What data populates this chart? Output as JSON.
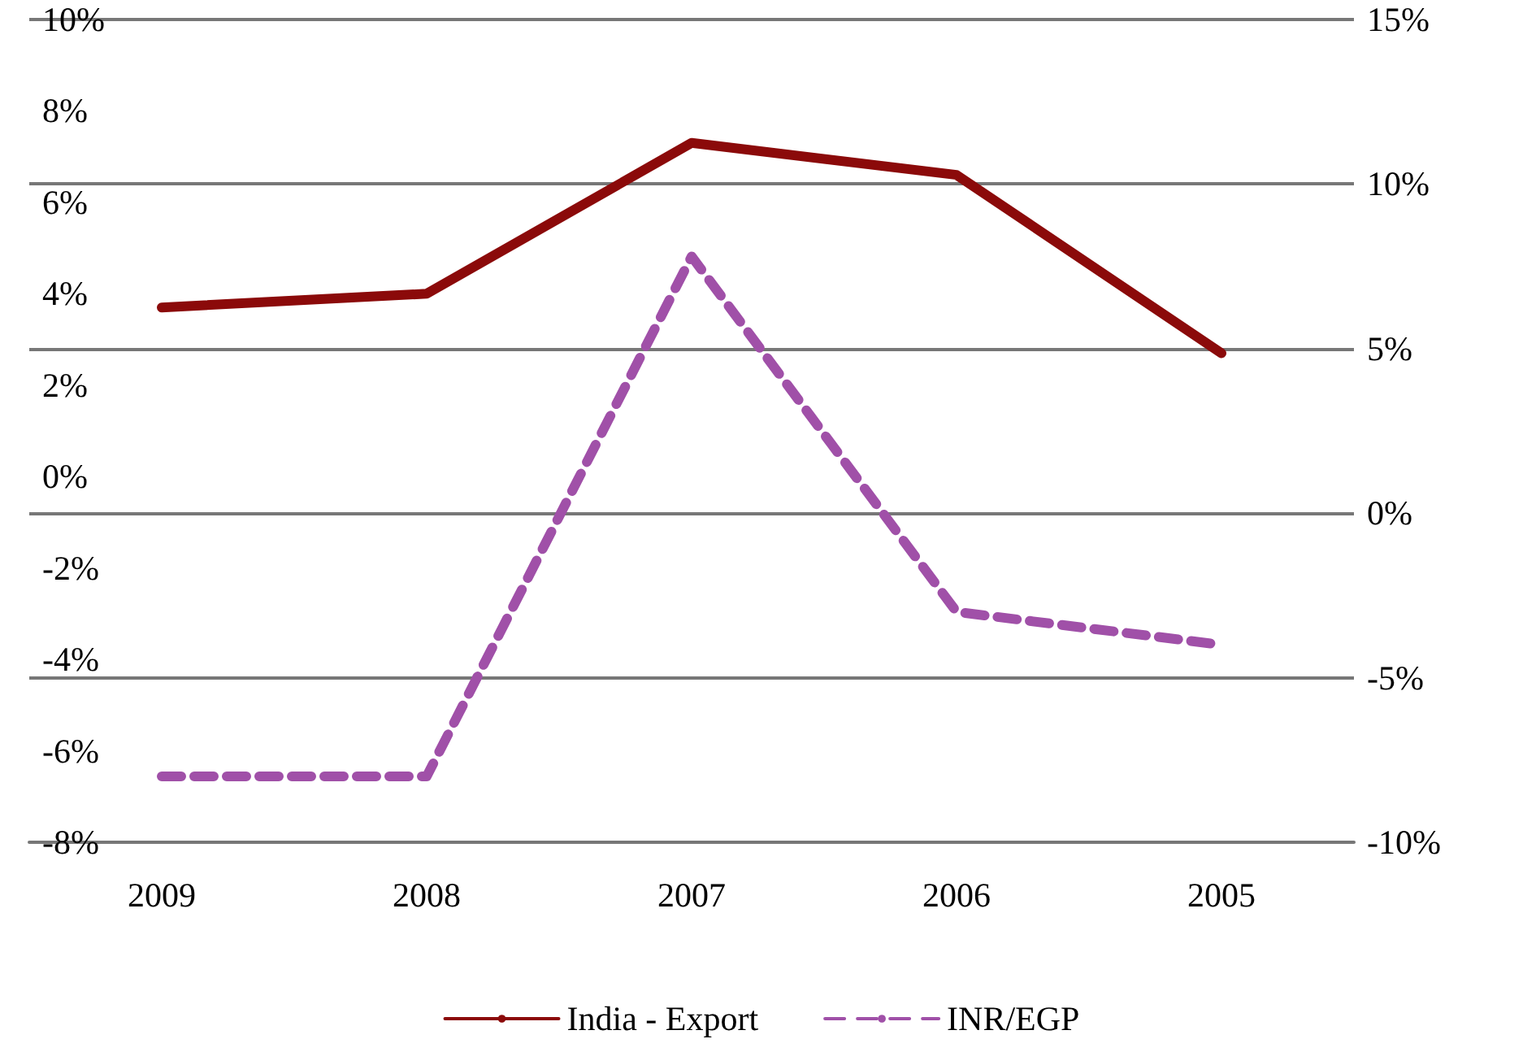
{
  "chart_data": {
    "type": "line",
    "categories": [
      "2009",
      "2008",
      "2007",
      "2006",
      "2005"
    ],
    "series": [
      {
        "name": "India - Export",
        "color": "#8b0a0a",
        "values": [
          3.7,
          4.0,
          7.3,
          6.6,
          2.7
        ],
        "line_style": "solid"
      },
      {
        "name": "INR/EGP",
        "color": "#a050a8",
        "values": [
          -8,
          -8,
          7.8,
          -3.0,
          -4.0
        ],
        "line_style": "dashed",
        "axis": "y2"
      }
    ],
    "ylim": [
      -8,
      10
    ],
    "yticks": [
      {
        "value": -8,
        "label": "-8%"
      },
      {
        "value": -6,
        "label": "-6%"
      },
      {
        "value": -4,
        "label": "-4%"
      },
      {
        "value": -2,
        "label": "-2%"
      },
      {
        "value": 0,
        "label": "0%"
      },
      {
        "value": 2,
        "label": "2%"
      },
      {
        "value": 4,
        "label": "4%"
      },
      {
        "value": 6,
        "label": "6%"
      },
      {
        "value": 8,
        "label": "8%"
      },
      {
        "value": 10,
        "label": "10%"
      }
    ],
    "y2lim": [
      -10,
      15
    ],
    "y2ticks": [
      {
        "value": -10,
        "label": "-10%"
      },
      {
        "value": -5,
        "label": "-5%"
      },
      {
        "value": 0,
        "label": "0%"
      },
      {
        "value": 5,
        "label": "5%"
      },
      {
        "value": 10,
        "label": "10%"
      },
      {
        "value": 15,
        "label": "15%"
      }
    ],
    "grid": "y2",
    "legend": "bottom",
    "marker": "none"
  }
}
